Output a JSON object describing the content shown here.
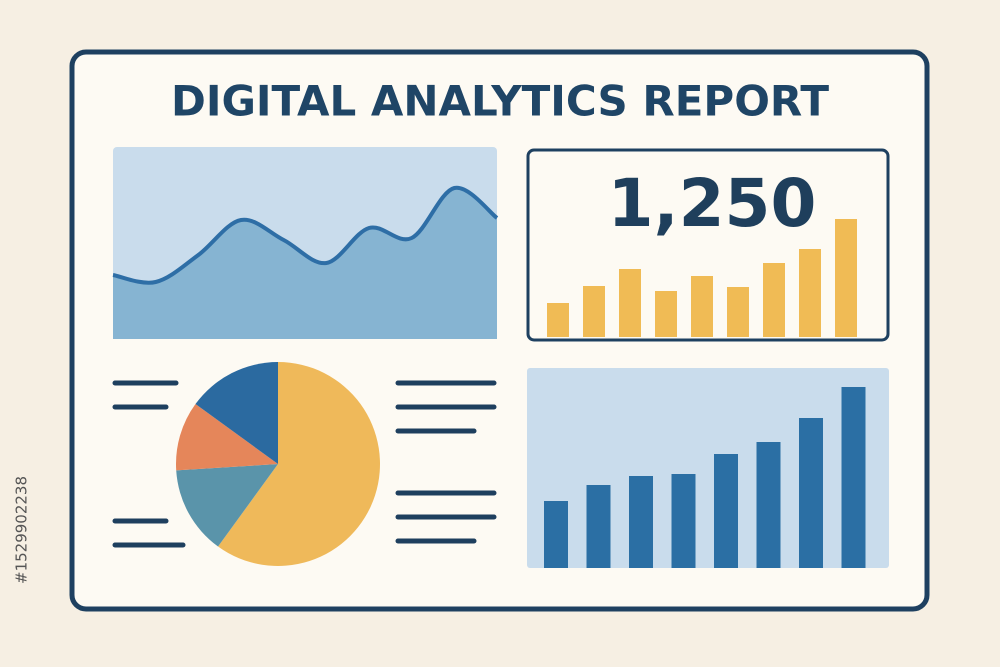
{
  "title": "DIGITAL ANALYTICS REPORT",
  "side_id": "#1529902238",
  "area_chart": {
    "values": [
      64,
      57,
      84,
      119,
      99,
      76,
      111,
      101,
      151,
      121
    ],
    "line_color": "#2e6ea6",
    "fill_color": "#86b4d2"
  },
  "kpi": {
    "value": "1,250",
    "bars": [
      34,
      51,
      68,
      46,
      61,
      50,
      74,
      88,
      118
    ],
    "color": "#f0bb55"
  },
  "pie": {
    "values": [
      60,
      14,
      11,
      15
    ],
    "colors": [
      "#efb95a",
      "#5a94aa",
      "#e5865a",
      "#2b6aa0"
    ]
  },
  "bar_chart": {
    "values": [
      67,
      83,
      92,
      94,
      114,
      126,
      150,
      181
    ],
    "color": "#2b6fa4"
  }
}
